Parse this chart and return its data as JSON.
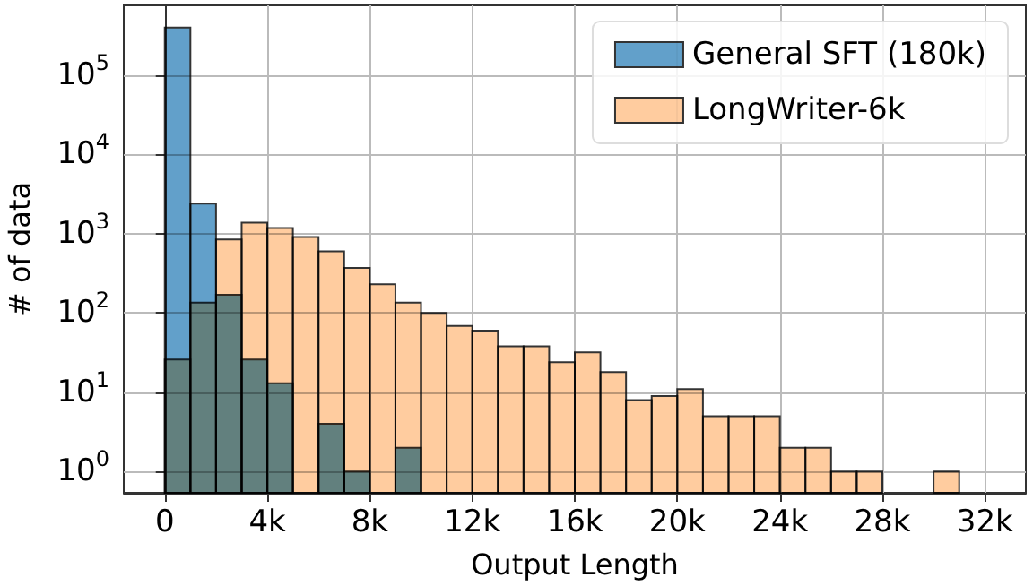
{
  "chart_data": {
    "type": "histogram",
    "xlabel": "Output Length",
    "ylabel": "# of data",
    "bins": [
      0,
      1000,
      2000,
      3000,
      4000,
      5000,
      6000,
      7000,
      8000,
      9000,
      10000,
      11000,
      12000,
      13000,
      14000,
      15000,
      16000,
      17000,
      18000,
      19000,
      20000,
      21000,
      22000,
      23000,
      24000,
      25000,
      26000,
      27000,
      28000,
      29000,
      30000,
      31000,
      32000
    ],
    "series": [
      {
        "name": "General SFT (180k)",
        "color": "#62a0ca",
        "values": [
          400000,
          2400,
          170,
          26,
          13,
          null,
          4,
          1,
          null,
          2,
          null,
          null,
          null,
          null,
          null,
          null,
          null,
          null,
          null,
          null,
          null,
          null,
          null,
          null,
          null,
          null,
          null,
          null,
          null,
          null,
          null,
          null
        ]
      },
      {
        "name": "LongWriter-6k",
        "color": "#ffcc9f",
        "values": [
          26,
          135,
          850,
          1380,
          1180,
          910,
          600,
          370,
          230,
          135,
          100,
          69,
          60,
          38,
          38,
          24,
          32,
          18,
          8,
          9,
          11,
          5,
          5,
          5,
          2,
          2,
          1,
          1,
          null,
          null,
          1,
          null
        ]
      }
    ],
    "log": "y",
    "xlim": [
      -1600,
      33600
    ],
    "ylim": [
      0.54,
      760000
    ],
    "xticks": [
      0,
      {
        "value": 4000,
        "label": "4k"
      },
      {
        "value": 8000,
        "label": "8k"
      },
      {
        "value": 12000,
        "label": "12k"
      },
      {
        "value": 16000,
        "label": "16k"
      },
      {
        "value": 20000,
        "label": "20k"
      },
      {
        "value": 24000,
        "label": "24k"
      },
      {
        "value": 28000,
        "label": "28k"
      },
      {
        "value": 32000,
        "label": "32k"
      }
    ],
    "yticks": [
      {
        "value": 1,
        "label": "10$^{0}$"
      },
      {
        "value": 10,
        "label": "10$^{1}$"
      },
      {
        "value": 100,
        "label": "10$^{2}$"
      },
      {
        "value": 1000,
        "label": "10$^{3}$"
      },
      {
        "value": 10000,
        "label": "10$^{4}$"
      },
      {
        "value": 100000,
        "label": "10$^{5}$"
      }
    ],
    "grid": true,
    "legend": "top right"
  }
}
